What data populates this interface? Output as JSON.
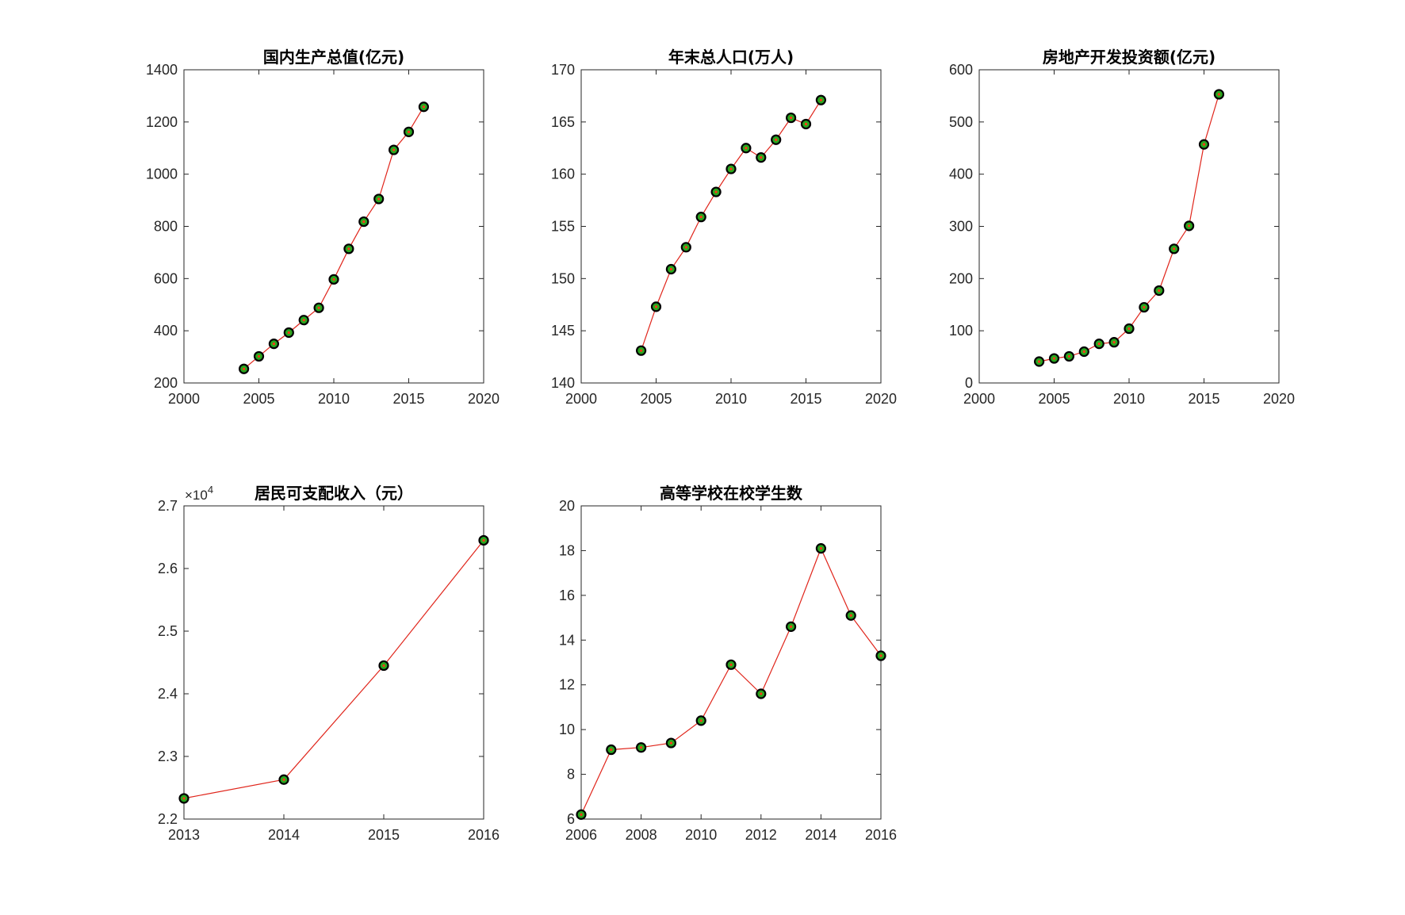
{
  "chart_data": [
    {
      "type": "line",
      "title": "国内生产总值(亿元)",
      "x": [
        2004,
        2005,
        2006,
        2007,
        2008,
        2009,
        2010,
        2011,
        2012,
        2013,
        2014,
        2015,
        2016
      ],
      "values": [
        254,
        302,
        350,
        393,
        441,
        488,
        597,
        714,
        818,
        905,
        1093,
        1162,
        1258
      ],
      "xlim": [
        2000,
        2020
      ],
      "ylim": [
        200,
        1400
      ],
      "xticks": [
        2000,
        2005,
        2010,
        2015,
        2020
      ],
      "yticks": [
        200,
        400,
        600,
        800,
        1000,
        1200,
        1400
      ],
      "grid": false
    },
    {
      "type": "line",
      "title": "年末总人口(万人)",
      "x": [
        2004,
        2005,
        2006,
        2007,
        2008,
        2009,
        2010,
        2011,
        2012,
        2013,
        2014,
        2015,
        2016
      ],
      "values": [
        143.1,
        147.3,
        150.9,
        153.0,
        155.9,
        158.3,
        160.5,
        162.5,
        161.6,
        163.3,
        165.4,
        164.8,
        167.1
      ],
      "xlim": [
        2000,
        2020
      ],
      "ylim": [
        140,
        170
      ],
      "xticks": [
        2000,
        2005,
        2010,
        2015,
        2020
      ],
      "yticks": [
        140,
        145,
        150,
        155,
        160,
        165,
        170
      ],
      "grid": false
    },
    {
      "type": "line",
      "title": "房地产开发投资额(亿元)",
      "x": [
        2004,
        2005,
        2006,
        2007,
        2008,
        2009,
        2010,
        2011,
        2012,
        2013,
        2014,
        2015,
        2016
      ],
      "values": [
        41,
        47,
        51,
        60,
        75,
        78,
        104,
        145,
        177,
        257,
        301,
        457,
        553
      ],
      "xlim": [
        2000,
        2020
      ],
      "ylim": [
        0,
        600
      ],
      "xticks": [
        2000,
        2005,
        2010,
        2015,
        2020
      ],
      "yticks": [
        0,
        100,
        200,
        300,
        400,
        500,
        600
      ],
      "grid": false
    },
    {
      "type": "line",
      "title": "居民可支配收入（元）",
      "x": [
        2013,
        2014,
        2015,
        2016
      ],
      "values": [
        22330,
        22630,
        24450,
        26450
      ],
      "xlim": [
        2013,
        2016
      ],
      "ylim": [
        22000,
        27000
      ],
      "xticks": [
        2013,
        2014,
        2015,
        2016
      ],
      "yticks": [
        22000,
        23000,
        24000,
        25000,
        26000,
        27000
      ],
      "ytick_labels": [
        "2.2",
        "2.3",
        "2.4",
        "2.5",
        "2.6",
        "2.7"
      ],
      "y_exponent": {
        "base": "×10",
        "power": "4"
      },
      "grid": false
    },
    {
      "type": "line",
      "title": "高等学校在校学生数",
      "x": [
        2006,
        2007,
        2008,
        2009,
        2010,
        2011,
        2012,
        2013,
        2014,
        2015,
        2016
      ],
      "values": [
        6.2,
        9.1,
        9.2,
        9.4,
        10.4,
        12.9,
        11.6,
        14.6,
        18.1,
        15.1,
        13.3
      ],
      "xlim": [
        2006,
        2016
      ],
      "ylim": [
        6,
        20
      ],
      "xticks": [
        2006,
        2008,
        2010,
        2012,
        2014,
        2016
      ],
      "yticks": [
        6,
        8,
        10,
        12,
        14,
        16,
        18,
        20
      ],
      "grid": false
    }
  ],
  "colors": {
    "line": "#e0251b",
    "marker_fill": "#29a81f",
    "marker_edge": "#000000",
    "marker_center": "#ff3a18",
    "axes": "#262626"
  }
}
